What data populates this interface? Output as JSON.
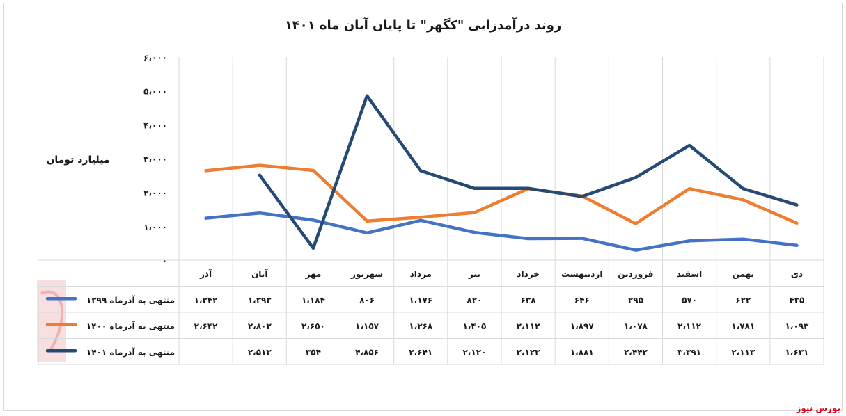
{
  "chart_data": {
    "type": "line",
    "title": "روند درآمدزایی \"کگهر\" تا پایان آبان ماه ۱۴۰۱",
    "ylabel": "میلیارد تومان",
    "ylim": [
      0,
      6000
    ],
    "yticks": [
      "۰",
      "۱،۰۰۰",
      "۲،۰۰۰",
      "۳،۰۰۰",
      "۴،۰۰۰",
      "۵،۰۰۰",
      "۶،۰۰۰"
    ],
    "categories": [
      "دی",
      "بهمن",
      "اسفند",
      "فروردین",
      "اردیبهشت",
      "خرداد",
      "تیر",
      "مرداد",
      "شهریور",
      "مهر",
      "آبان",
      "آذر"
    ],
    "grid": true,
    "series": [
      {
        "name": "منتهی به آذرماه ۱۳۹۹",
        "color": "#4472c4",
        "values": [
          435,
          622,
          570,
          295,
          646,
          638,
          820,
          1176,
          806,
          1184,
          1393,
          1242
        ],
        "labels": [
          "۴۳۵",
          "۶۲۲",
          "۵۷۰",
          "۲۹۵",
          "۶۴۶",
          "۶۳۸",
          "۸۲۰",
          "۱،۱۷۶",
          "۸۰۶",
          "۱،۱۸۴",
          "۱،۳۹۳",
          "۱،۲۴۲"
        ]
      },
      {
        "name": "منتهی به آذرماه ۱۴۰۰",
        "color": "#ed7d31",
        "values": [
          1093,
          1781,
          2112,
          1078,
          1897,
          2112,
          1405,
          1268,
          1157,
          2650,
          2803,
          2642
        ],
        "labels": [
          "۱،۰۹۳",
          "۱،۷۸۱",
          "۲،۱۱۲",
          "۱،۰۷۸",
          "۱،۸۹۷",
          "۲،۱۱۲",
          "۱،۴۰۵",
          "۱،۲۶۸",
          "۱،۱۵۷",
          "۲،۶۵۰",
          "۲،۸۰۳",
          "۲،۶۴۲"
        ]
      },
      {
        "name": "منتهی به آذرماه ۱۴۰۱",
        "color": "#264a73",
        "values": [
          1631,
          2113,
          3391,
          2442,
          1881,
          2123,
          2120,
          2641,
          4856,
          354,
          2513,
          null
        ],
        "labels": [
          "۱،۶۳۱",
          "۲،۱۱۳",
          "۳،۳۹۱",
          "۲،۴۴۲",
          "۱،۸۸۱",
          "۲،۱۲۳",
          "۲،۱۲۰",
          "۲،۶۴۱",
          "۴،۸۵۶",
          "۳۵۴",
          "۲،۵۱۳",
          ""
        ]
      }
    ]
  },
  "brand": "بورس نیوز",
  "colors": {
    "grid": "#d9d9d9",
    "text": "#1a1a1a",
    "brand": "#d9001b"
  }
}
